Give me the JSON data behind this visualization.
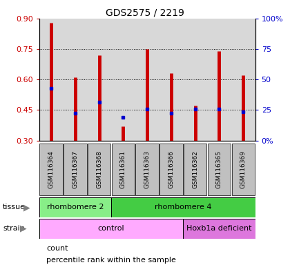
{
  "title": "GDS2575 / 2219",
  "samples": [
    "GSM116364",
    "GSM116367",
    "GSM116368",
    "GSM116361",
    "GSM116363",
    "GSM116366",
    "GSM116362",
    "GSM116365",
    "GSM116369"
  ],
  "bar_top": [
    0.88,
    0.61,
    0.72,
    0.37,
    0.75,
    0.63,
    0.47,
    0.74,
    0.62
  ],
  "bar_bottom": [
    0.3,
    0.3,
    0.3,
    0.3,
    0.3,
    0.3,
    0.3,
    0.3,
    0.3
  ],
  "blue_vals": [
    0.555,
    0.435,
    0.49,
    0.415,
    0.455,
    0.435,
    0.455,
    0.455,
    0.44
  ],
  "ylim": [
    0.3,
    0.9
  ],
  "yticks_left": [
    0.3,
    0.45,
    0.6,
    0.75,
    0.9
  ],
  "yticks_right_labels": [
    "0%",
    "25",
    "50",
    "75",
    "100%"
  ],
  "yticks_right_vals": [
    0.3,
    0.45,
    0.6,
    0.75,
    0.9
  ],
  "grid_vals": [
    0.45,
    0.6,
    0.75
  ],
  "bar_color": "#cc0000",
  "blue_color": "#0000cc",
  "tissue_groups": [
    {
      "label": "rhombomere 2",
      "start": 0,
      "end": 3,
      "color": "#88ee88"
    },
    {
      "label": "rhombomere 4",
      "start": 3,
      "end": 9,
      "color": "#44cc44"
    }
  ],
  "strain_groups": [
    {
      "label": "control",
      "start": 0,
      "end": 6,
      "color": "#ffaaff"
    },
    {
      "label": "Hoxb1a deficient",
      "start": 6,
      "end": 9,
      "color": "#dd77dd"
    }
  ],
  "tissue_label": "tissue",
  "strain_label": "strain",
  "legend_count": "count",
  "legend_pct": "percentile rank within the sample",
  "bg_color": "#ffffff",
  "axis_color_left": "#cc0000",
  "axis_color_right": "#0000cc",
  "plot_bg": "#d8d8d8",
  "xticklabel_bg": "#c0c0c0"
}
